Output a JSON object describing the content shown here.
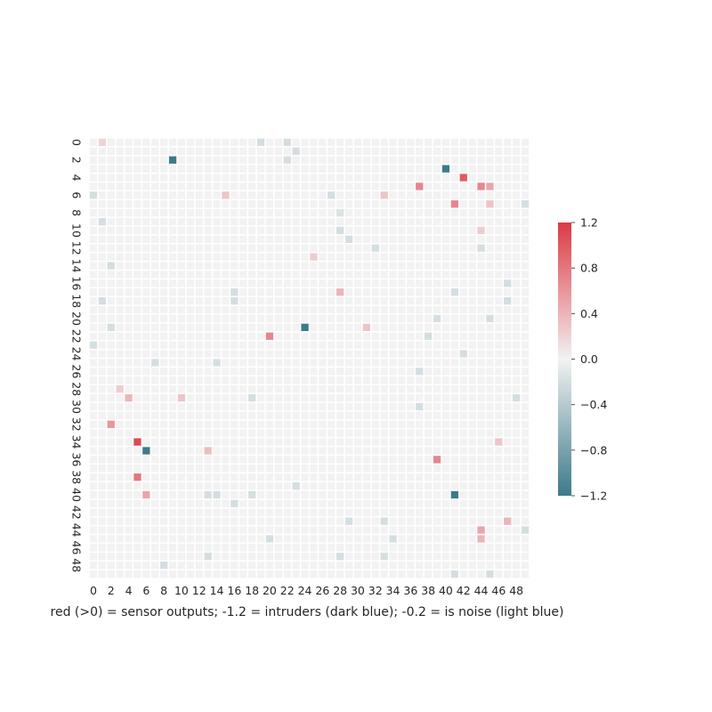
{
  "chart_data": {
    "type": "heatmap",
    "title": "",
    "xlabel": "red (>0) = sensor outputs; -1.2 = intruders (dark blue); -0.2 = is noise (light blue)",
    "ylabel": "",
    "rows": 50,
    "cols": 50,
    "x_tick_labels": [
      "0",
      "2",
      "4",
      "6",
      "8",
      "10",
      "12",
      "14",
      "16",
      "18",
      "20",
      "22",
      "24",
      "26",
      "28",
      "30",
      "32",
      "34",
      "36",
      "38",
      "40",
      "42",
      "44",
      "46",
      "48"
    ],
    "y_tick_labels": [
      "0",
      "2",
      "4",
      "6",
      "8",
      "10",
      "12",
      "14",
      "16",
      "18",
      "20",
      "22",
      "24",
      "26",
      "28",
      "30",
      "32",
      "34",
      "36",
      "38",
      "40",
      "42",
      "44",
      "46",
      "48"
    ],
    "value_range": [
      -1.2,
      1.2
    ],
    "default_value": 0,
    "colormap": {
      "low": "#3d7a8a",
      "mid": "#f2f2f2",
      "high": "#dc3a44"
    },
    "colorbar_ticks": [
      "1.2",
      "0.8",
      "0.4",
      "0.0",
      "−0.4",
      "−0.8",
      "−1.2"
    ],
    "colorbar_tick_values": [
      1.2,
      0.8,
      0.4,
      0.0,
      -0.4,
      -0.8,
      -1.2
    ],
    "grid": true,
    "legend": "right (colorbar)",
    "cells": [
      {
        "row": 0,
        "col": 1,
        "value": 0.2
      },
      {
        "row": 0,
        "col": 19,
        "value": -0.2
      },
      {
        "row": 0,
        "col": 22,
        "value": -0.2
      },
      {
        "row": 1,
        "col": 23,
        "value": -0.2
      },
      {
        "row": 2,
        "col": 9,
        "value": -1.2
      },
      {
        "row": 2,
        "col": 22,
        "value": -0.2
      },
      {
        "row": 3,
        "col": 40,
        "value": -1.2
      },
      {
        "row": 4,
        "col": 42,
        "value": 1.0
      },
      {
        "row": 5,
        "col": 37,
        "value": 0.7
      },
      {
        "row": 5,
        "col": 44,
        "value": 0.7
      },
      {
        "row": 5,
        "col": 45,
        "value": 0.5
      },
      {
        "row": 6,
        "col": 0,
        "value": -0.2
      },
      {
        "row": 6,
        "col": 15,
        "value": 0.3
      },
      {
        "row": 6,
        "col": 27,
        "value": -0.2
      },
      {
        "row": 6,
        "col": 33,
        "value": 0.3
      },
      {
        "row": 7,
        "col": 41,
        "value": 0.7
      },
      {
        "row": 7,
        "col": 45,
        "value": 0.3
      },
      {
        "row": 7,
        "col": 49,
        "value": -0.2
      },
      {
        "row": 8,
        "col": 28,
        "value": -0.15
      },
      {
        "row": 9,
        "col": 1,
        "value": -0.2
      },
      {
        "row": 10,
        "col": 28,
        "value": -0.2
      },
      {
        "row": 10,
        "col": 44,
        "value": 0.25
      },
      {
        "row": 11,
        "col": 29,
        "value": -0.2
      },
      {
        "row": 12,
        "col": 32,
        "value": -0.2
      },
      {
        "row": 12,
        "col": 44,
        "value": -0.2
      },
      {
        "row": 13,
        "col": 25,
        "value": 0.25
      },
      {
        "row": 14,
        "col": 2,
        "value": -0.2
      },
      {
        "row": 16,
        "col": 47,
        "value": -0.2
      },
      {
        "row": 17,
        "col": 16,
        "value": -0.2
      },
      {
        "row": 17,
        "col": 28,
        "value": 0.4
      },
      {
        "row": 17,
        "col": 41,
        "value": -0.2
      },
      {
        "row": 18,
        "col": 1,
        "value": -0.2
      },
      {
        "row": 18,
        "col": 16,
        "value": -0.2
      },
      {
        "row": 18,
        "col": 47,
        "value": -0.2
      },
      {
        "row": 20,
        "col": 39,
        "value": -0.2
      },
      {
        "row": 20,
        "col": 45,
        "value": -0.2
      },
      {
        "row": 21,
        "col": 2,
        "value": -0.2
      },
      {
        "row": 21,
        "col": 24,
        "value": -1.2
      },
      {
        "row": 21,
        "col": 31,
        "value": 0.3
      },
      {
        "row": 22,
        "col": 20,
        "value": 0.7
      },
      {
        "row": 22,
        "col": 38,
        "value": -0.2
      },
      {
        "row": 23,
        "col": 0,
        "value": -0.2
      },
      {
        "row": 24,
        "col": 42,
        "value": -0.2
      },
      {
        "row": 25,
        "col": 7,
        "value": -0.2
      },
      {
        "row": 25,
        "col": 14,
        "value": -0.2
      },
      {
        "row": 26,
        "col": 37,
        "value": -0.2
      },
      {
        "row": 28,
        "col": 3,
        "value": 0.25
      },
      {
        "row": 29,
        "col": 4,
        "value": 0.4
      },
      {
        "row": 29,
        "col": 10,
        "value": 0.3
      },
      {
        "row": 29,
        "col": 18,
        "value": -0.2
      },
      {
        "row": 29,
        "col": 48,
        "value": -0.2
      },
      {
        "row": 30,
        "col": 37,
        "value": -0.2
      },
      {
        "row": 32,
        "col": 2,
        "value": 0.6
      },
      {
        "row": 34,
        "col": 5,
        "value": 1.1
      },
      {
        "row": 34,
        "col": 46,
        "value": 0.3
      },
      {
        "row": 35,
        "col": 6,
        "value": -1.2
      },
      {
        "row": 35,
        "col": 13,
        "value": 0.35
      },
      {
        "row": 36,
        "col": 39,
        "value": 0.7
      },
      {
        "row": 38,
        "col": 5,
        "value": 0.8
      },
      {
        "row": 39,
        "col": 23,
        "value": -0.2
      },
      {
        "row": 40,
        "col": 6,
        "value": 0.5
      },
      {
        "row": 40,
        "col": 13,
        "value": -0.2
      },
      {
        "row": 40,
        "col": 14,
        "value": -0.2
      },
      {
        "row": 40,
        "col": 18,
        "value": -0.2
      },
      {
        "row": 40,
        "col": 41,
        "value": -1.2
      },
      {
        "row": 41,
        "col": 16,
        "value": -0.2
      },
      {
        "row": 43,
        "col": 29,
        "value": -0.2
      },
      {
        "row": 43,
        "col": 33,
        "value": -0.2
      },
      {
        "row": 43,
        "col": 47,
        "value": 0.4
      },
      {
        "row": 44,
        "col": 44,
        "value": 0.5
      },
      {
        "row": 44,
        "col": 49,
        "value": -0.2
      },
      {
        "row": 45,
        "col": 20,
        "value": -0.2
      },
      {
        "row": 45,
        "col": 34,
        "value": -0.2
      },
      {
        "row": 45,
        "col": 44,
        "value": 0.4
      },
      {
        "row": 47,
        "col": 13,
        "value": -0.2
      },
      {
        "row": 47,
        "col": 28,
        "value": -0.2
      },
      {
        "row": 47,
        "col": 33,
        "value": -0.2
      },
      {
        "row": 48,
        "col": 8,
        "value": -0.2
      },
      {
        "row": 49,
        "col": 41,
        "value": -0.2
      },
      {
        "row": 49,
        "col": 45,
        "value": -0.2
      }
    ]
  }
}
